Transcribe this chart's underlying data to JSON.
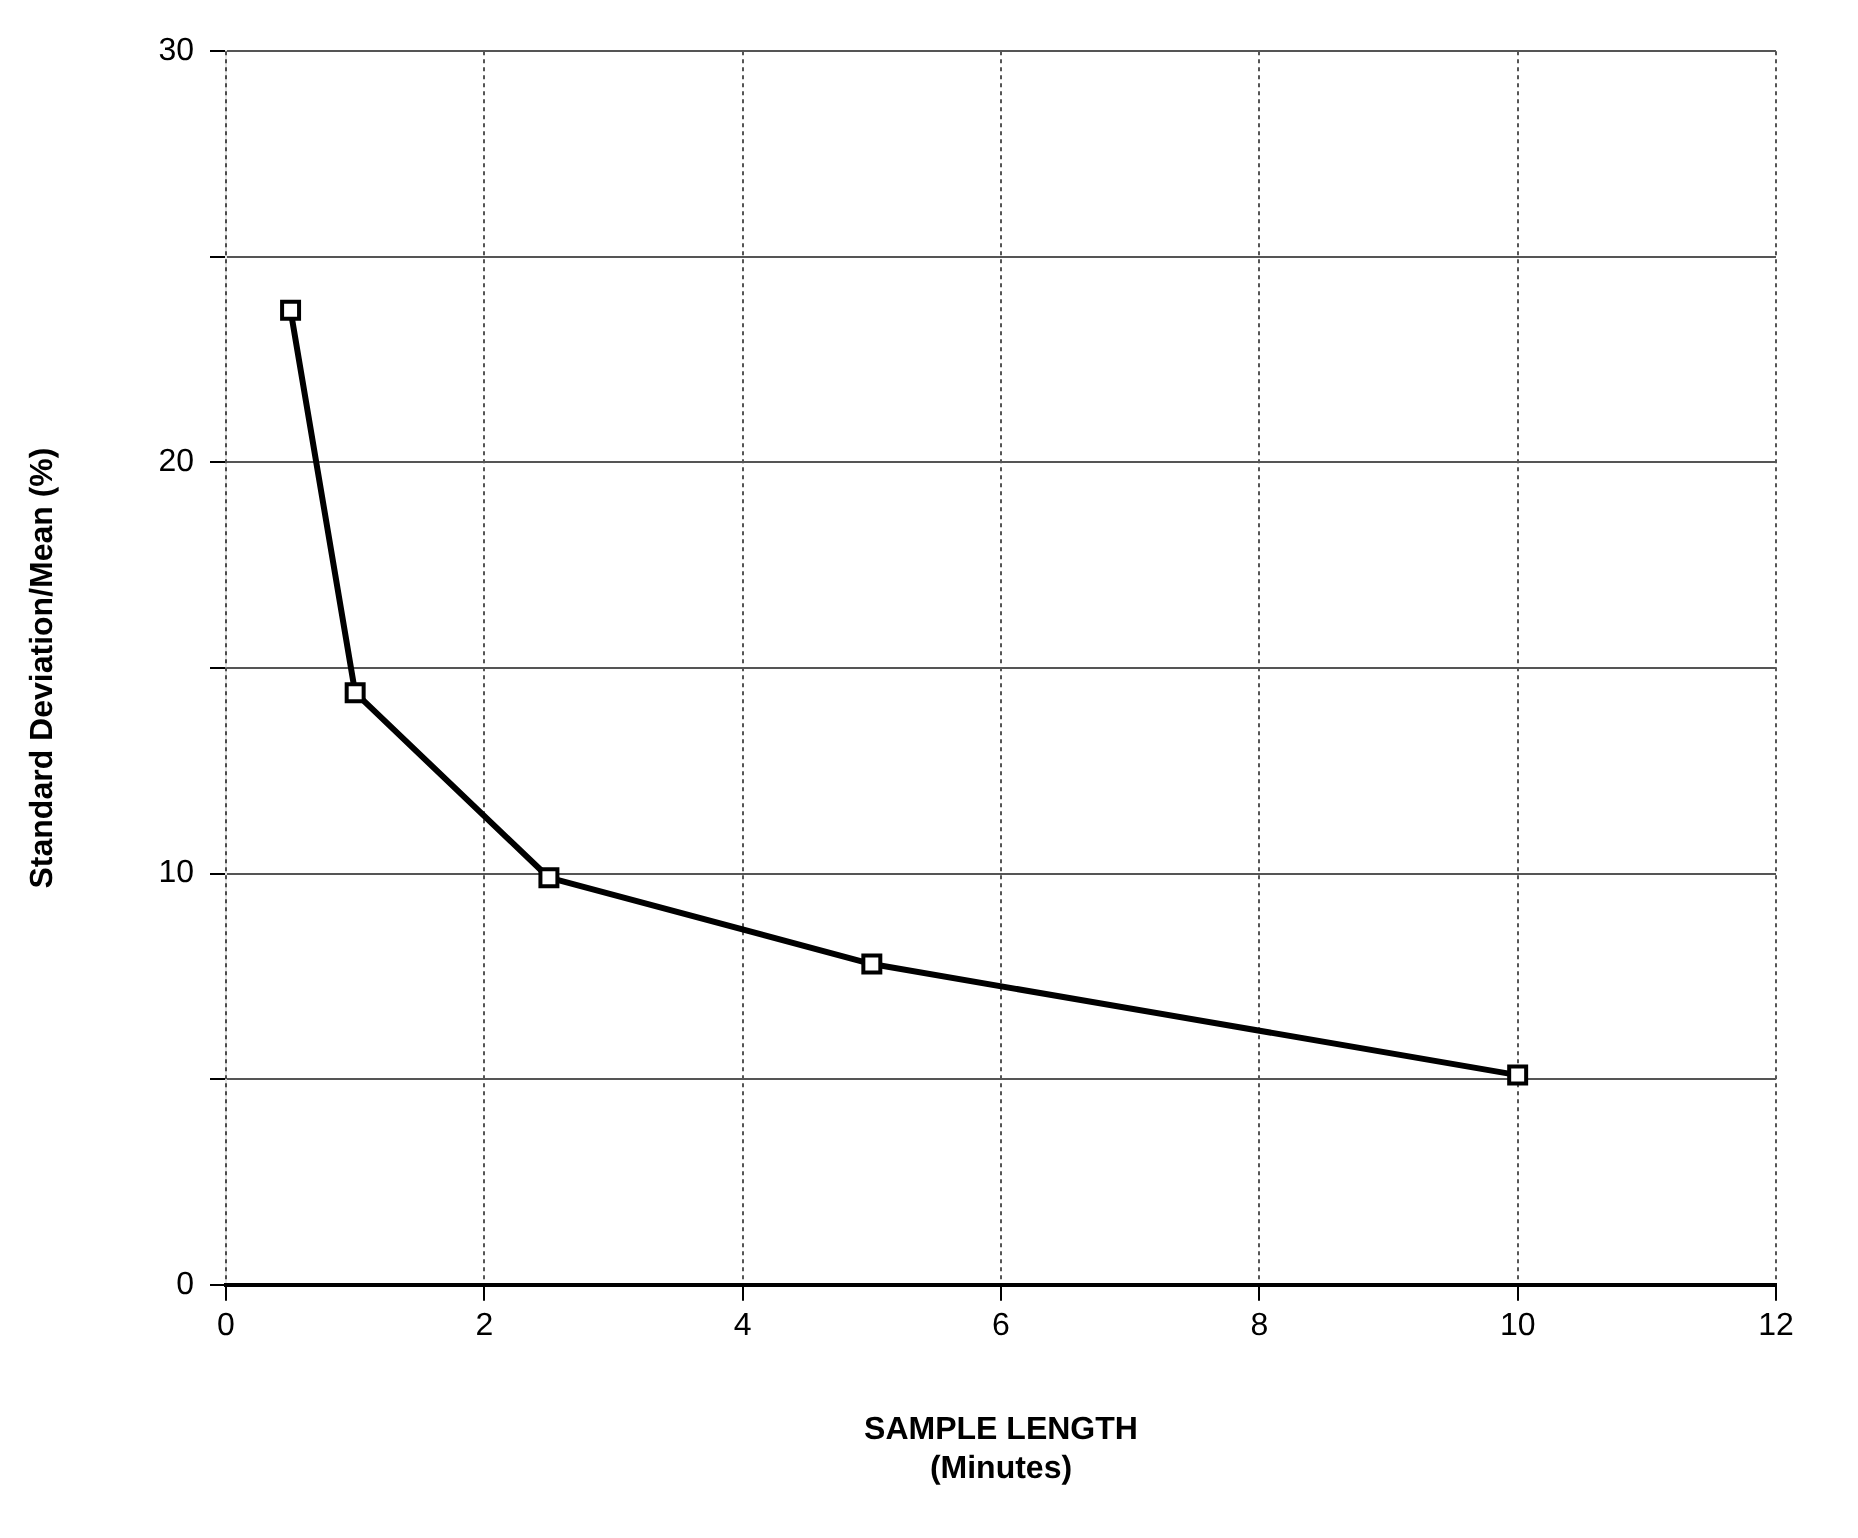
{
  "chart_data": {
    "type": "line",
    "xlabel": "SAMPLE LENGTH\n(Minutes)",
    "ylabel": "Standard Deviation/Mean (%)",
    "x": [
      0.5,
      1,
      2.5,
      5,
      10
    ],
    "series": [
      {
        "color": "#000000",
        "values": [
          23.7,
          14.4,
          9.9,
          7.8,
          5.1
        ]
      }
    ],
    "xlim": [
      0,
      12
    ],
    "xticks": [
      0,
      2,
      4,
      6,
      8,
      10,
      12
    ],
    "ylim": [
      0,
      30
    ],
    "yticks": [
      0,
      {
        "value": 5,
        "label": null
      },
      10,
      {
        "value": 15,
        "label": null
      },
      20,
      {
        "value": 25,
        "label": null
      },
      30
    ],
    "grid": true,
    "legend": false,
    "marker": "square",
    "line_style": "solid"
  }
}
